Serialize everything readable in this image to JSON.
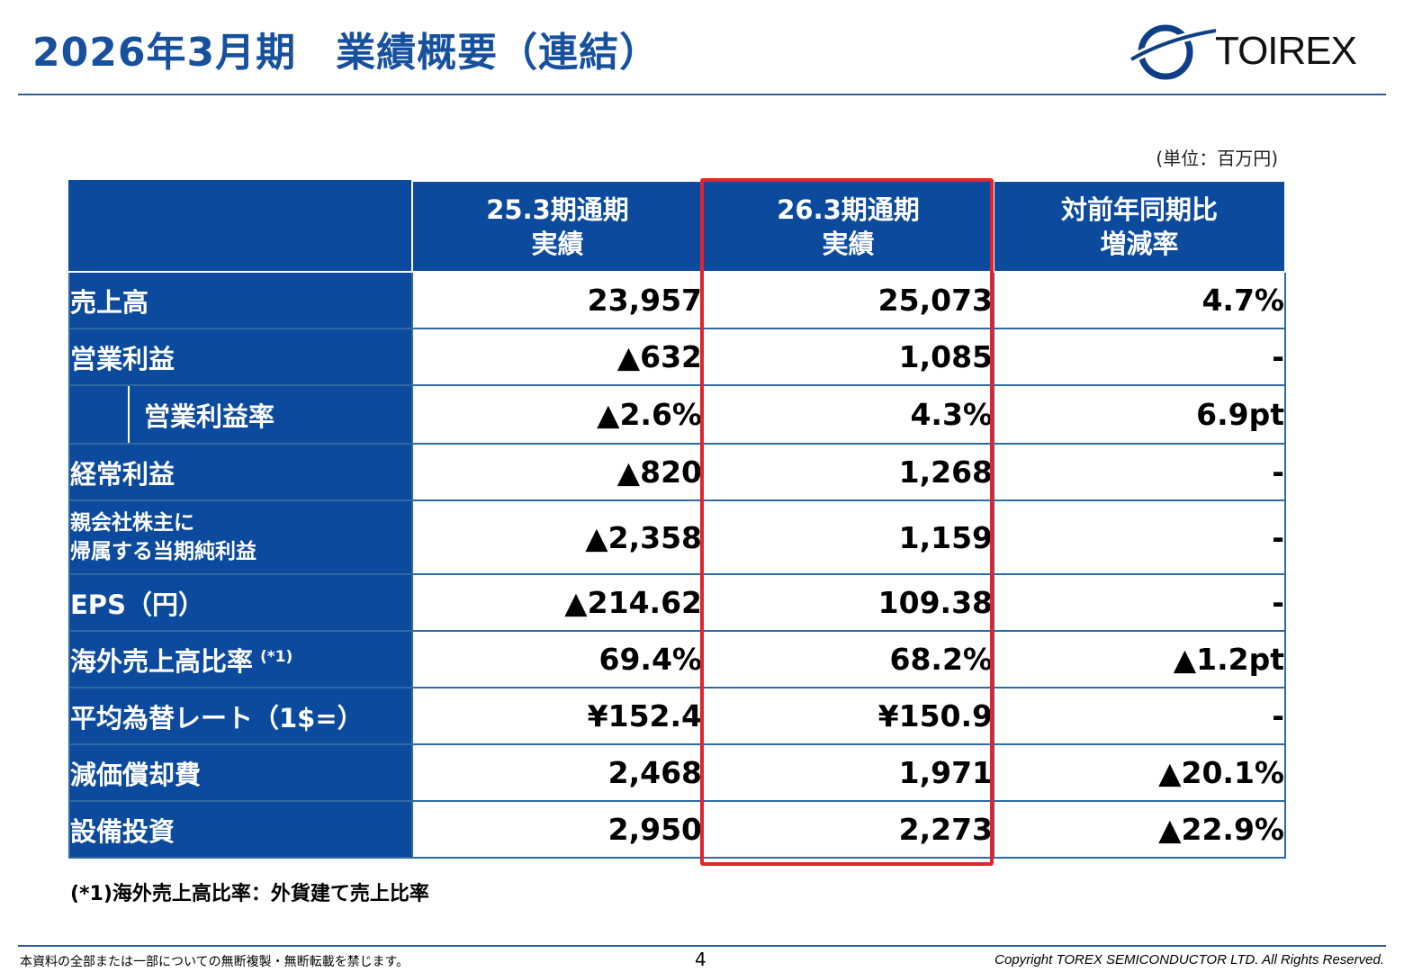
{
  "header": {
    "title_period": "2026年3月期",
    "title_main": "業績概要（連結）",
    "logo_text": "TOIREX",
    "brand_color": "#17509c"
  },
  "unit_note": "(単位：百万円)",
  "table": {
    "columns": [
      {
        "line1": "25.3期通期",
        "line2": "実績"
      },
      {
        "line1": "26.3期通期",
        "line2": "実績"
      },
      {
        "line1": "対前年同期比",
        "line2": "増減率"
      }
    ],
    "rows": [
      {
        "label": "売上高",
        "values": [
          "23,957",
          "25,073",
          "4.7%"
        ]
      },
      {
        "label": "営業利益",
        "values": [
          "▲632",
          "1,085",
          "-"
        ]
      },
      {
        "label": "営業利益率",
        "values": [
          "▲2.6%",
          "4.3%",
          "6.9pt"
        ]
      },
      {
        "label": "経常利益",
        "values": [
          "▲820",
          "1,268",
          "-"
        ]
      },
      {
        "label_line1": "親会社株主に",
        "label_line2": "帰属する当期純利益",
        "values": [
          "▲2,358",
          "1,159",
          "-"
        ]
      },
      {
        "label": "EPS（円）",
        "values": [
          "▲214.62",
          "109.38",
          "-"
        ]
      },
      {
        "label": "海外売上高比率",
        "note": "(*1)",
        "values": [
          "69.4%",
          "68.2%",
          "▲1.2pt"
        ]
      },
      {
        "label": "平均為替レート（1$=）",
        "values": [
          "¥152.4",
          "¥150.9",
          "-"
        ]
      },
      {
        "label": "減価償却費",
        "values": [
          "2,468",
          "1,971",
          "▲20.1%"
        ]
      },
      {
        "label": "設備投資",
        "values": [
          "2,950",
          "2,273",
          "▲22.9%"
        ]
      }
    ],
    "header_bg": "#0b4a9c",
    "highlight_color": "#e2242d"
  },
  "footnote": "(*1)海外売上高比率：外貨建て売上比率",
  "footer": {
    "left": "本資料の全部または一部についての無断複製・無断転載を禁じます。",
    "page": "4",
    "right": "Copyright TOREX SEMICONDUCTOR LTD.  All Rights Reserved."
  }
}
